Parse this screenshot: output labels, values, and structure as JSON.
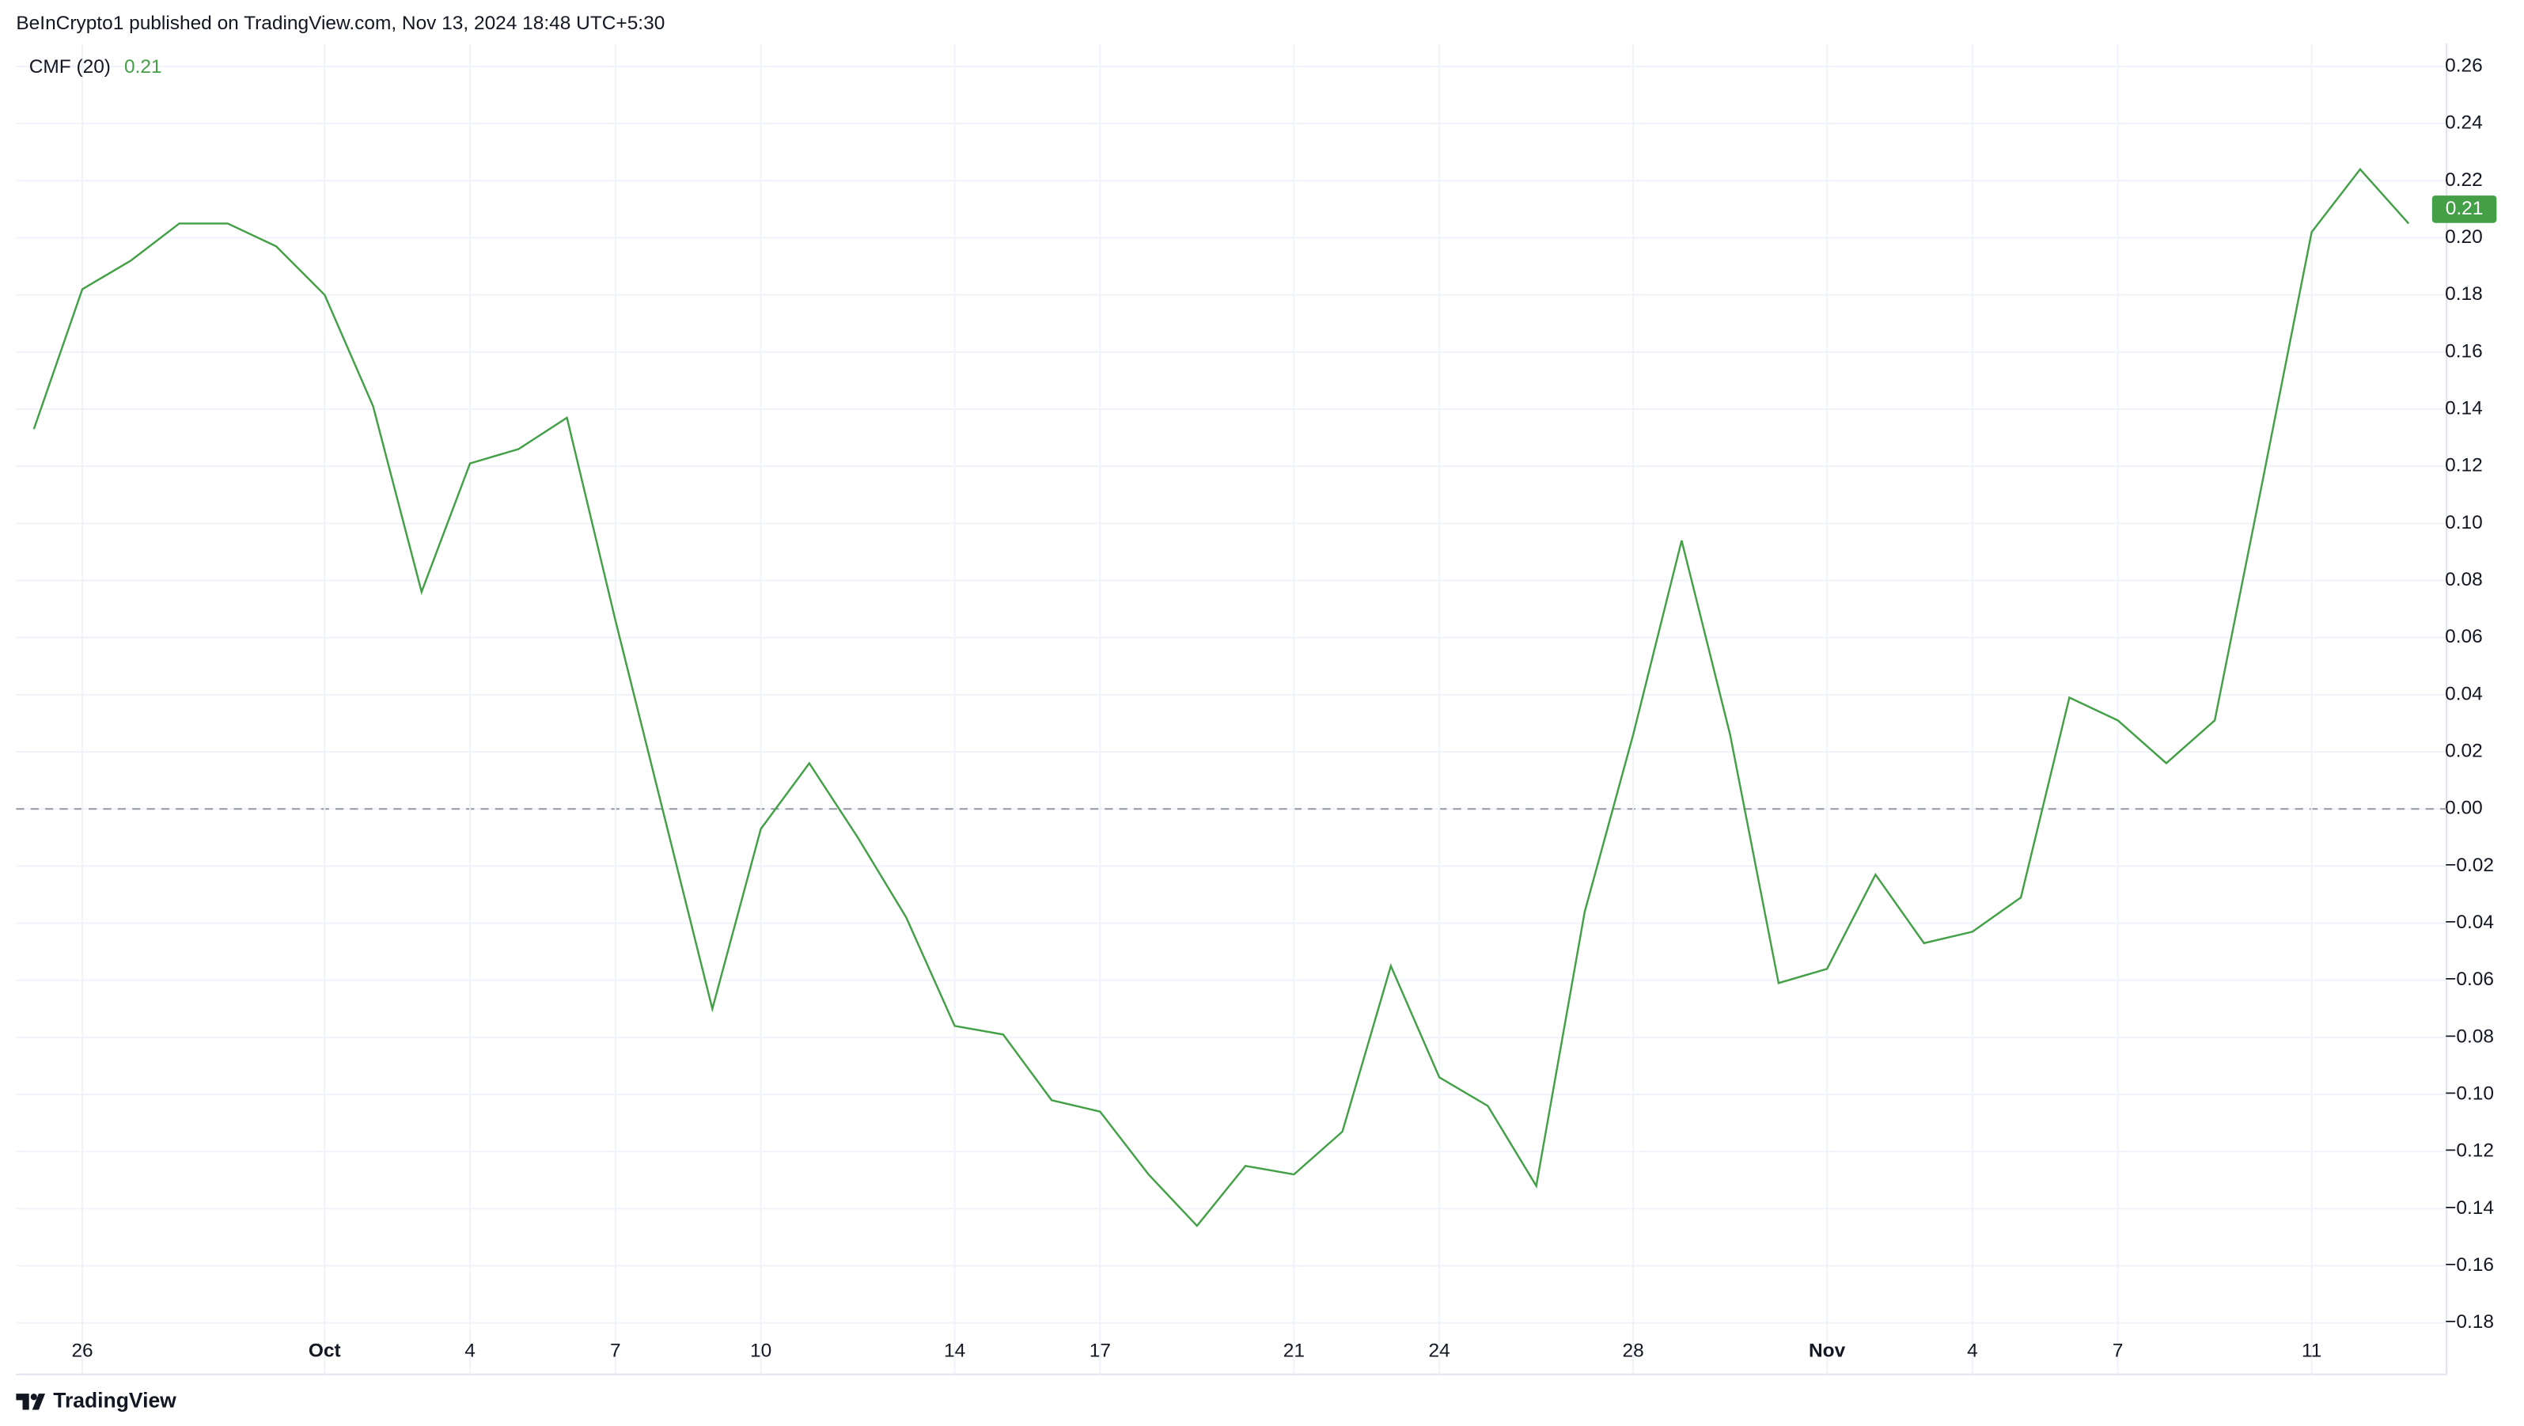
{
  "header": "BeInCrypto1 published on TradingView.com, Nov 13, 2024 18:48 UTC+5:30",
  "footer": "TradingView",
  "chart_data": {
    "type": "line",
    "categories": [
      null,
      "26",
      null,
      null,
      null,
      null,
      "Oct",
      null,
      null,
      "4",
      null,
      null,
      "7",
      null,
      null,
      "10",
      null,
      null,
      null,
      "14",
      null,
      null,
      "17",
      null,
      null,
      null,
      "21",
      null,
      null,
      "24",
      null,
      null,
      null,
      "28",
      null,
      null,
      null,
      "Nov",
      null,
      null,
      "4",
      null,
      null,
      "7",
      null,
      null,
      null,
      "11",
      null,
      null
    ],
    "series": [
      {
        "name": "CMF (20)",
        "color": "#43a047",
        "values": [
          0.133,
          0.182,
          0.192,
          0.205,
          0.205,
          0.197,
          0.18,
          0.141,
          0.076,
          0.121,
          0.126,
          0.137,
          0.066,
          -0.002,
          -0.07,
          -0.007,
          0.016,
          -0.01,
          -0.038,
          -0.076,
          -0.079,
          -0.102,
          -0.106,
          -0.128,
          -0.146,
          -0.125,
          -0.128,
          -0.113,
          -0.055,
          -0.094,
          -0.104,
          -0.132,
          -0.036,
          0.026,
          0.094,
          0.026,
          -0.061,
          -0.056,
          -0.023,
          -0.047,
          -0.043,
          -0.031,
          0.039,
          0.031,
          0.016,
          0.031,
          0.116,
          0.202,
          0.224,
          0.205
        ]
      }
    ],
    "current_value": 0.21,
    "ylim": [
      -0.198,
      0.268
    ],
    "yticks": [
      0.26,
      0.24,
      0.22,
      {
        "value": 0.2,
        "label": "0.20"
      },
      0.18,
      0.16,
      0.14,
      0.12,
      {
        "value": 0.1,
        "label": "0.10"
      },
      0.08,
      0.06,
      0.04,
      0.02,
      {
        "value": 0,
        "label": "0.00"
      },
      {
        "value": -0.02,
        "label": "−0.02"
      },
      {
        "value": -0.04,
        "label": "−0.04"
      },
      {
        "value": -0.06,
        "label": "−0.06"
      },
      {
        "value": -0.08,
        "label": "−0.08"
      },
      {
        "value": -0.1,
        "label": "−0.10"
      },
      {
        "value": -0.12,
        "label": "−0.12"
      },
      {
        "value": -0.14,
        "label": "−0.14"
      },
      {
        "value": -0.16,
        "label": "−0.16"
      },
      {
        "value": -0.18,
        "label": "−0.18"
      }
    ],
    "grid": true
  }
}
